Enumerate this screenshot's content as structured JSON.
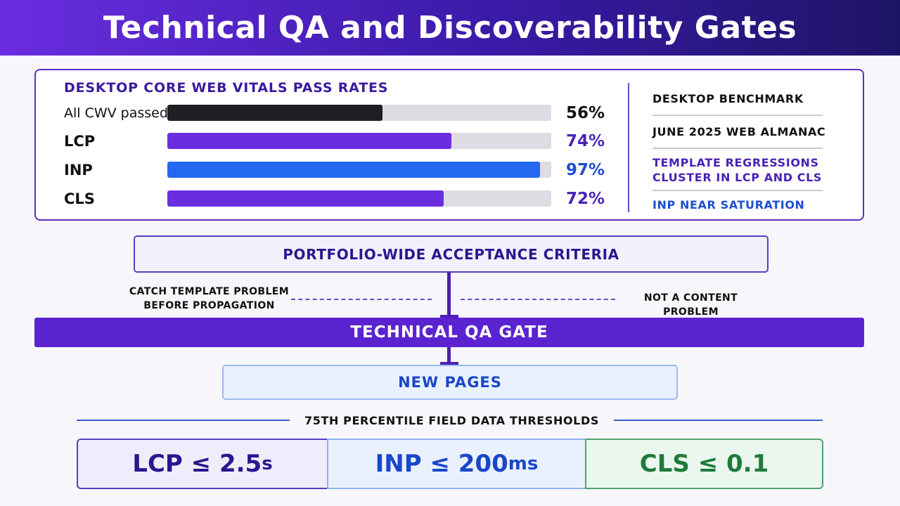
{
  "title": "Technical QA and Discoverability Gates",
  "benchmark": {
    "title": "DESKTOP CORE WEB VITALS PASS RATES",
    "bars": [
      {
        "label": "All CWV passed",
        "value": 56,
        "value_label": "56%",
        "color": "#1f1f25",
        "value_color": "#111111"
      },
      {
        "label": "LCP",
        "value": 74,
        "value_label": "74%",
        "color": "#6a2ee0",
        "value_color": "#4a22b8"
      },
      {
        "label": "INP",
        "value": 97,
        "value_label": "97%",
        "color": "#2368f0",
        "value_color": "#1d4fd0"
      },
      {
        "label": "CLS",
        "value": 72,
        "value_label": "72%",
        "color": "#6a2ee0",
        "value_color": "#4a22b8"
      }
    ],
    "side": {
      "item1": "DESKTOP BENCHMARK",
      "item2": "JUNE 2025 WEB ALMANAC",
      "item3_line1": "TEMPLATE REGRESSIONS",
      "item3_line2": "CLUSTER IN LCP AND CLS",
      "item4": "INP NEAR SATURATION"
    }
  },
  "flow": {
    "criteria": "PORTFOLIO-WIDE ACCEPTANCE CRITERIA",
    "left_note_line1": "CATCH TEMPLATE PROBLEM",
    "left_note_line2": "BEFORE PROPAGATION",
    "right_note": "NOT A CONTENT PROBLEM",
    "gate": "TECHNICAL QA GATE",
    "new_pages": "NEW PAGES"
  },
  "thresholds": {
    "title": "75TH PERCENTILE FIELD DATA THRESHOLDS",
    "lcp": {
      "text": "LCP ≤ 2.5",
      "unit": "s"
    },
    "inp": {
      "text": "INP ≤ 200",
      "unit": "ms"
    },
    "cls": {
      "text": "CLS ≤ 0.1",
      "unit": ""
    }
  },
  "colors": {
    "accent": "#5b23d0",
    "blue": "#1a47c9",
    "green": "#1f7a3a"
  }
}
